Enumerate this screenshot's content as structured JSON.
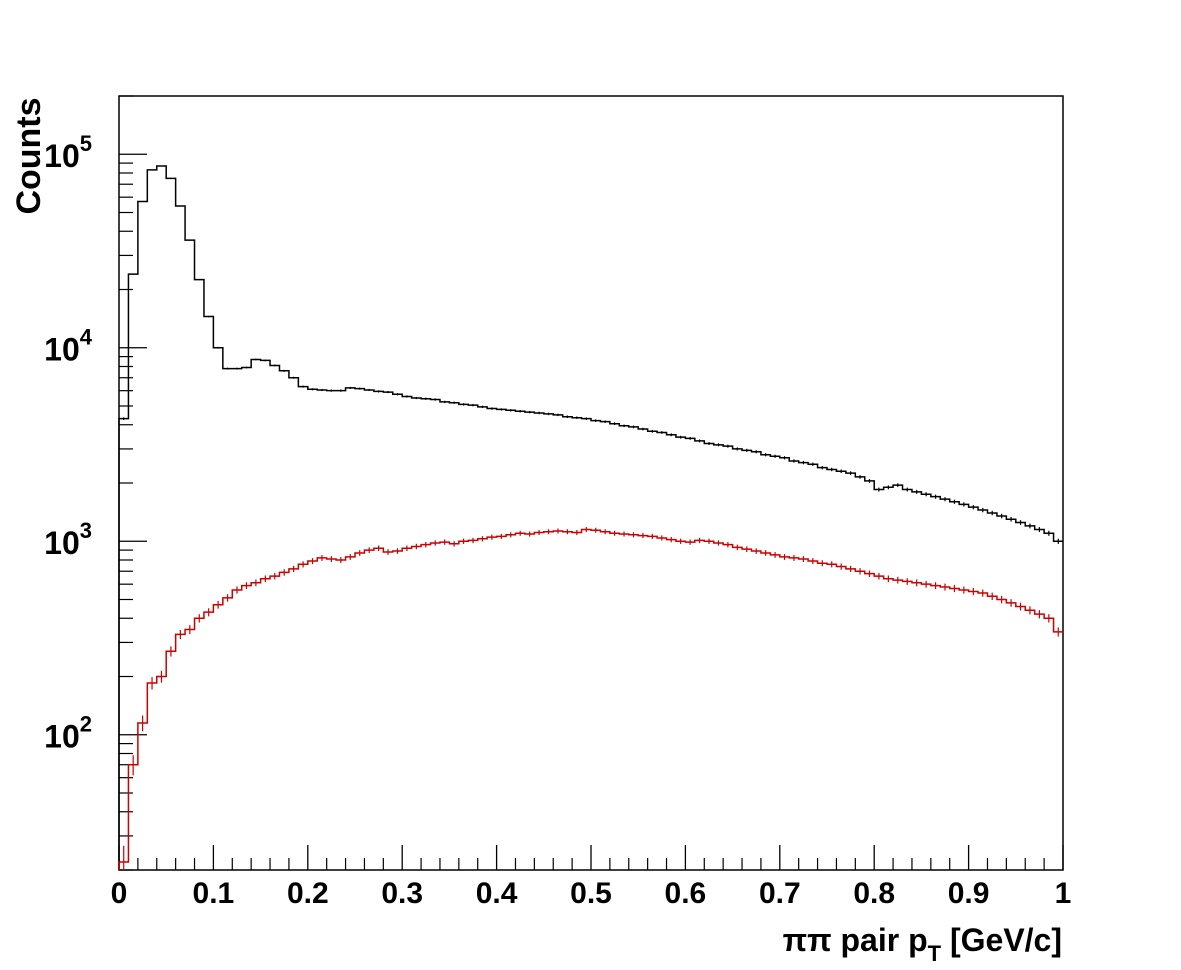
{
  "chart_data": {
    "type": "histogram",
    "ylabel": "Counts",
    "xlabel": {
      "prefix": "ππ pair p",
      "sub": "T",
      "suffix": " [GeV/c]"
    },
    "xlim": [
      0,
      1
    ],
    "ylim": [
      20,
      200000
    ],
    "yscale": "log",
    "grid": false,
    "legend": "none",
    "x_ticks": [
      {
        "value": 0,
        "label": "0"
      },
      {
        "value": 0.1,
        "label": "0.1"
      },
      {
        "value": 0.2,
        "label": "0.2"
      },
      {
        "value": 0.3,
        "label": "0.3"
      },
      {
        "value": 0.4,
        "label": "0.4"
      },
      {
        "value": 0.5,
        "label": "0.5"
      },
      {
        "value": 0.6,
        "label": "0.6"
      },
      {
        "value": 0.7,
        "label": "0.7"
      },
      {
        "value": 0.8,
        "label": "0.8"
      },
      {
        "value": 0.9,
        "label": "0.9"
      },
      {
        "value": 1,
        "label": "1"
      }
    ],
    "y_ticks": [
      {
        "value": 100,
        "base": "10",
        "exp": "2"
      },
      {
        "value": 1000,
        "base": "10",
        "exp": "3"
      },
      {
        "value": 10000,
        "base": "10",
        "exp": "4"
      },
      {
        "value": 100000,
        "base": "10",
        "exp": "5"
      }
    ],
    "bin_edges_start": 0,
    "bin_width": 0.01,
    "series": [
      {
        "color": "#000000",
        "values": [
          4300,
          24000,
          57000,
          83000,
          87000,
          75000,
          54000,
          36000,
          22500,
          14500,
          10000,
          7800,
          7800,
          7900,
          8700,
          8600,
          8100,
          7600,
          7000,
          6300,
          6100,
          6050,
          6000,
          6000,
          6200,
          6150,
          6050,
          5950,
          5900,
          5750,
          5600,
          5500,
          5450,
          5400,
          5250,
          5200,
          5100,
          5050,
          4950,
          4850,
          4800,
          4750,
          4700,
          4650,
          4600,
          4550,
          4500,
          4400,
          4350,
          4300,
          4200,
          4150,
          4050,
          3950,
          3900,
          3800,
          3700,
          3650,
          3550,
          3450,
          3400,
          3300,
          3200,
          3150,
          3100,
          3000,
          2950,
          2900,
          2800,
          2750,
          2700,
          2600,
          2550,
          2500,
          2400,
          2350,
          2300,
          2250,
          2150,
          2050,
          1850,
          1900,
          1950,
          1850,
          1800,
          1750,
          1700,
          1650,
          1600,
          1550,
          1500,
          1450,
          1400,
          1350,
          1300,
          1250,
          1200,
          1150,
          1100,
          1000
        ]
      },
      {
        "color": "#cc0000",
        "values": [
          22,
          70,
          115,
          185,
          200,
          270,
          330,
          350,
          400,
          430,
          470,
          510,
          560,
          590,
          610,
          640,
          660,
          690,
          720,
          760,
          790,
          820,
          810,
          800,
          830,
          870,
          900,
          920,
          880,
          890,
          920,
          940,
          960,
          980,
          990,
          970,
          1000,
          1010,
          1030,
          1050,
          1060,
          1080,
          1100,
          1090,
          1110,
          1120,
          1130,
          1120,
          1110,
          1150,
          1140,
          1120,
          1100,
          1090,
          1080,
          1070,
          1060,
          1040,
          1020,
          1000,
          990,
          1010,
          1000,
          980,
          960,
          930,
          910,
          890,
          870,
          850,
          830,
          820,
          810,
          790,
          770,
          760,
          740,
          720,
          700,
          680,
          660,
          640,
          630,
          620,
          610,
          600,
          590,
          580,
          570,
          560,
          550,
          540,
          520,
          500,
          480,
          460,
          440,
          420,
          400,
          340
        ]
      }
    ]
  }
}
